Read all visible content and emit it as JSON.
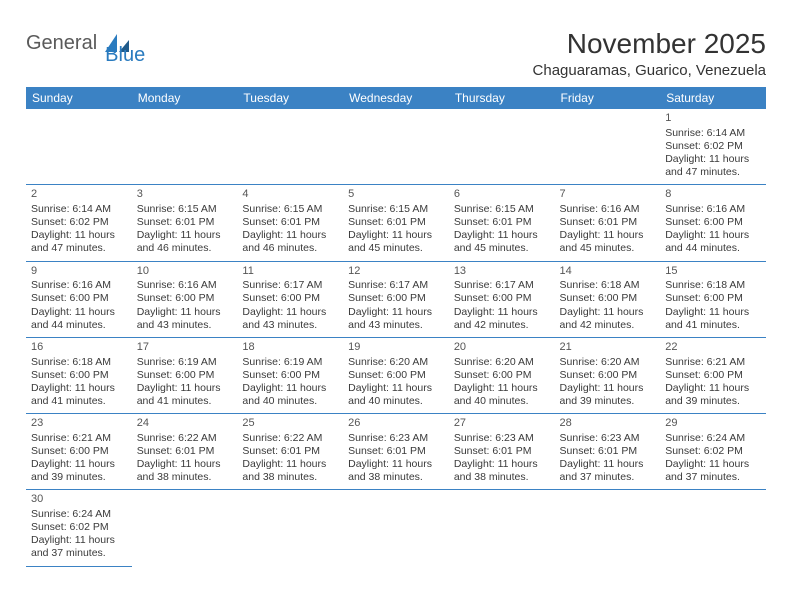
{
  "logo": {
    "text1": "General",
    "text2": "Blue"
  },
  "title": "November 2025",
  "location": "Chaguaramas, Guarico, Venezuela",
  "colors": {
    "header_bg": "#3b82c4",
    "header_text": "#ffffff",
    "grid_line": "#3b82c4",
    "body_text": "#3a3a3a",
    "logo_gray": "#5a5a5a",
    "logo_blue": "#2a7bbf",
    "background": "#ffffff"
  },
  "typography": {
    "title_fontsize": 28,
    "location_fontsize": 15,
    "dayheader_fontsize": 12,
    "cell_fontsize": 10.5
  },
  "structure": {
    "type": "calendar-grid",
    "columns": 7,
    "rows": 6,
    "start_weekday_index": 6
  },
  "day_headers": [
    "Sunday",
    "Monday",
    "Tuesday",
    "Wednesday",
    "Thursday",
    "Friday",
    "Saturday"
  ],
  "days": [
    {
      "n": 1,
      "sunrise": "6:14 AM",
      "sunset": "6:02 PM",
      "daylight": "11 hours and 47 minutes."
    },
    {
      "n": 2,
      "sunrise": "6:14 AM",
      "sunset": "6:02 PM",
      "daylight": "11 hours and 47 minutes."
    },
    {
      "n": 3,
      "sunrise": "6:15 AM",
      "sunset": "6:01 PM",
      "daylight": "11 hours and 46 minutes."
    },
    {
      "n": 4,
      "sunrise": "6:15 AM",
      "sunset": "6:01 PM",
      "daylight": "11 hours and 46 minutes."
    },
    {
      "n": 5,
      "sunrise": "6:15 AM",
      "sunset": "6:01 PM",
      "daylight": "11 hours and 45 minutes."
    },
    {
      "n": 6,
      "sunrise": "6:15 AM",
      "sunset": "6:01 PM",
      "daylight": "11 hours and 45 minutes."
    },
    {
      "n": 7,
      "sunrise": "6:16 AM",
      "sunset": "6:01 PM",
      "daylight": "11 hours and 45 minutes."
    },
    {
      "n": 8,
      "sunrise": "6:16 AM",
      "sunset": "6:00 PM",
      "daylight": "11 hours and 44 minutes."
    },
    {
      "n": 9,
      "sunrise": "6:16 AM",
      "sunset": "6:00 PM",
      "daylight": "11 hours and 44 minutes."
    },
    {
      "n": 10,
      "sunrise": "6:16 AM",
      "sunset": "6:00 PM",
      "daylight": "11 hours and 43 minutes."
    },
    {
      "n": 11,
      "sunrise": "6:17 AM",
      "sunset": "6:00 PM",
      "daylight": "11 hours and 43 minutes."
    },
    {
      "n": 12,
      "sunrise": "6:17 AM",
      "sunset": "6:00 PM",
      "daylight": "11 hours and 43 minutes."
    },
    {
      "n": 13,
      "sunrise": "6:17 AM",
      "sunset": "6:00 PM",
      "daylight": "11 hours and 42 minutes."
    },
    {
      "n": 14,
      "sunrise": "6:18 AM",
      "sunset": "6:00 PM",
      "daylight": "11 hours and 42 minutes."
    },
    {
      "n": 15,
      "sunrise": "6:18 AM",
      "sunset": "6:00 PM",
      "daylight": "11 hours and 41 minutes."
    },
    {
      "n": 16,
      "sunrise": "6:18 AM",
      "sunset": "6:00 PM",
      "daylight": "11 hours and 41 minutes."
    },
    {
      "n": 17,
      "sunrise": "6:19 AM",
      "sunset": "6:00 PM",
      "daylight": "11 hours and 41 minutes."
    },
    {
      "n": 18,
      "sunrise": "6:19 AM",
      "sunset": "6:00 PM",
      "daylight": "11 hours and 40 minutes."
    },
    {
      "n": 19,
      "sunrise": "6:20 AM",
      "sunset": "6:00 PM",
      "daylight": "11 hours and 40 minutes."
    },
    {
      "n": 20,
      "sunrise": "6:20 AM",
      "sunset": "6:00 PM",
      "daylight": "11 hours and 40 minutes."
    },
    {
      "n": 21,
      "sunrise": "6:20 AM",
      "sunset": "6:00 PM",
      "daylight": "11 hours and 39 minutes."
    },
    {
      "n": 22,
      "sunrise": "6:21 AM",
      "sunset": "6:00 PM",
      "daylight": "11 hours and 39 minutes."
    },
    {
      "n": 23,
      "sunrise": "6:21 AM",
      "sunset": "6:00 PM",
      "daylight": "11 hours and 39 minutes."
    },
    {
      "n": 24,
      "sunrise": "6:22 AM",
      "sunset": "6:01 PM",
      "daylight": "11 hours and 38 minutes."
    },
    {
      "n": 25,
      "sunrise": "6:22 AM",
      "sunset": "6:01 PM",
      "daylight": "11 hours and 38 minutes."
    },
    {
      "n": 26,
      "sunrise": "6:23 AM",
      "sunset": "6:01 PM",
      "daylight": "11 hours and 38 minutes."
    },
    {
      "n": 27,
      "sunrise": "6:23 AM",
      "sunset": "6:01 PM",
      "daylight": "11 hours and 38 minutes."
    },
    {
      "n": 28,
      "sunrise": "6:23 AM",
      "sunset": "6:01 PM",
      "daylight": "11 hours and 37 minutes."
    },
    {
      "n": 29,
      "sunrise": "6:24 AM",
      "sunset": "6:02 PM",
      "daylight": "11 hours and 37 minutes."
    },
    {
      "n": 30,
      "sunrise": "6:24 AM",
      "sunset": "6:02 PM",
      "daylight": "11 hours and 37 minutes."
    }
  ],
  "labels": {
    "sunrise": "Sunrise:",
    "sunset": "Sunset:",
    "daylight": "Daylight:"
  }
}
